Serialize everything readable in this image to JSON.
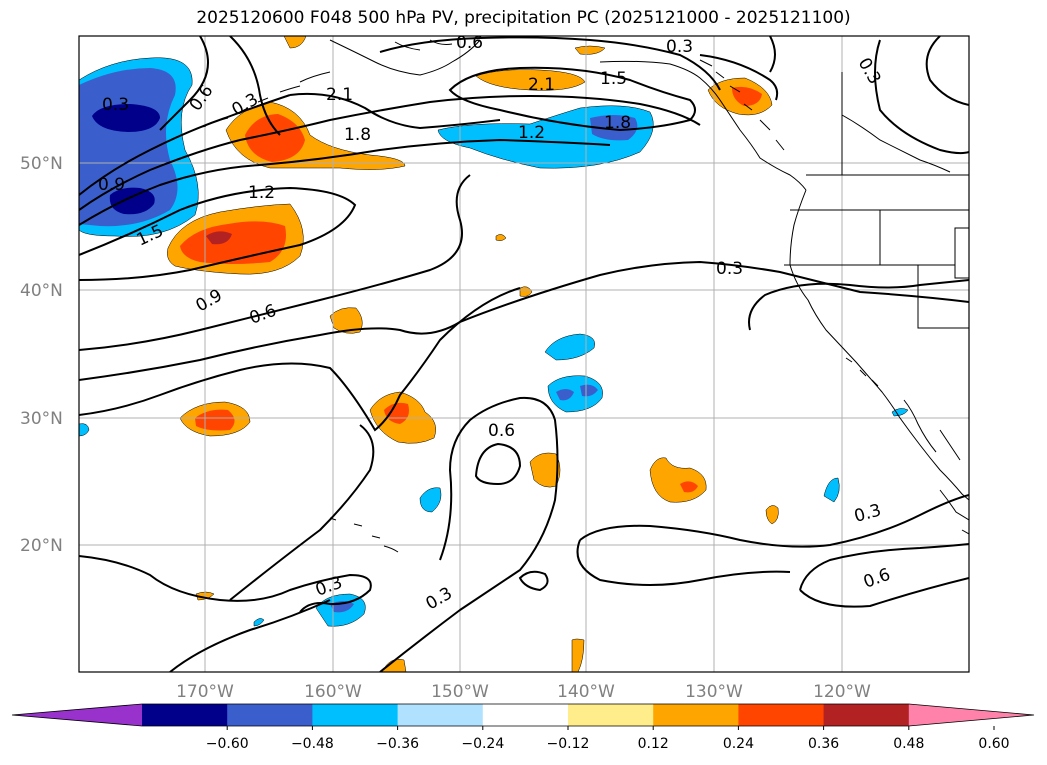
{
  "title": "2025120600 F048 500 hPa PV, precipitation PC (2025121000 - 2025121100)",
  "lat_labels": [
    "50°N",
    "40°N",
    "30°N",
    "20°N"
  ],
  "lon_labels": [
    "170°W",
    "160°W",
    "150°W",
    "140°W",
    "130°W",
    "120°W"
  ],
  "colorbar": {
    "ticks": [
      "−0.60",
      "−0.48",
      "−0.36",
      "−0.24",
      "−0.12",
      "0.12",
      "0.24",
      "0.36",
      "0.48",
      "0.60"
    ],
    "colors": [
      "#9932cc",
      "#00008b",
      "#3a5fcd",
      "#00bfff",
      "#b0e2ff",
      "#ffffff",
      "#ffec8b",
      "#ffa500",
      "#ff4500",
      "#b22222",
      "#ff82ab"
    ]
  },
  "contour_labels": [
    "0.6",
    "0.3",
    "0.3",
    "0.3",
    "0.6",
    "2.1",
    "1.5",
    "2.1",
    "1.8",
    "1.2",
    "1.8",
    "1.2",
    "0.9",
    "1.5",
    "0.3",
    "0.9",
    "0.6",
    "0.3",
    "0.6",
    "0.3",
    "0.3",
    "0.3",
    "0.6"
  ]
}
